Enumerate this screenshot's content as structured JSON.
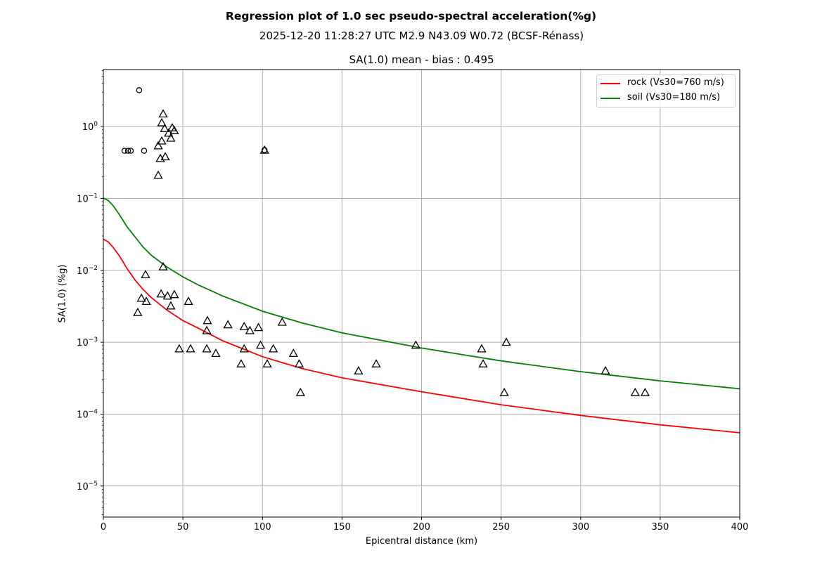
{
  "chart_data": {
    "type": "scatter",
    "title": "Regression plot of 1.0 sec pseudo-spectral acceleration(%g)",
    "subtitle": "2025-12-20 11:28:27 UTC M2.9 N43.09 W0.72 (BCSF-Rénass)",
    "axes_title": "SA(1.0) mean - bias : 0.495",
    "xlabel": "Epicentral distance (km)",
    "ylabel": "SA(1.0) (%g)",
    "xlim": [
      0,
      400
    ],
    "ylim": [
      3.7e-06,
      6.2
    ],
    "yscale": "log",
    "grid": true,
    "legend_position": "upper right",
    "x_ticks": [
      {
        "value": 0,
        "label": "0"
      },
      {
        "value": 50,
        "label": "50"
      },
      {
        "value": 100,
        "label": "100"
      },
      {
        "value": 150,
        "label": "150"
      },
      {
        "value": 200,
        "label": "200"
      },
      {
        "value": 250,
        "label": "250"
      },
      {
        "value": 300,
        "label": "300"
      },
      {
        "value": 350,
        "label": "350"
      },
      {
        "value": 400,
        "label": "400"
      }
    ],
    "y_ticks": [
      {
        "exp": 0,
        "base": "10",
        "sup": "0"
      },
      {
        "exp": -1,
        "base": "10",
        "sup": "−1"
      },
      {
        "exp": -2,
        "base": "10",
        "sup": "−2"
      },
      {
        "exp": -3,
        "base": "10",
        "sup": "−3"
      },
      {
        "exp": -4,
        "base": "10",
        "sup": "−4"
      },
      {
        "exp": -5,
        "base": "10",
        "sup": "−5"
      }
    ],
    "series": [
      {
        "name": "rock (Vs30=760 m/s)",
        "kind": "line",
        "color": "#ff0000",
        "x": [
          0,
          3,
          6,
          10,
          15,
          20,
          25,
          30,
          40,
          50,
          60,
          75,
          100,
          125,
          150,
          200,
          250,
          300,
          350,
          400
        ],
        "y": [
          0.027,
          0.025,
          0.021,
          0.016,
          0.0105,
          0.0073,
          0.0054,
          0.0042,
          0.0028,
          0.002,
          0.00155,
          0.00105,
          0.00063,
          0.00043,
          0.00032,
          0.000205,
          0.000135,
          9.6e-05,
          7.1e-05,
          5.5e-05
        ]
      },
      {
        "name": "soil (Vs30=180 m/s)",
        "kind": "line",
        "color": "#008000",
        "x": [
          0,
          3,
          6,
          10,
          15,
          20,
          25,
          30,
          40,
          50,
          60,
          75,
          100,
          125,
          150,
          200,
          250,
          300,
          350,
          400
        ],
        "y": [
          0.101,
          0.094,
          0.08,
          0.06,
          0.04,
          0.029,
          0.021,
          0.0163,
          0.0111,
          0.0081,
          0.0062,
          0.0044,
          0.0027,
          0.00185,
          0.00135,
          0.00083,
          0.00055,
          0.00039,
          0.00029,
          0.000225
        ]
      },
      {
        "name": "stations-circle",
        "kind": "scatter",
        "marker": "circle",
        "x": [
          22.5,
          13.3,
          15.5,
          17.2,
          25.6,
          101.3
        ],
        "y": [
          3.2,
          0.46,
          0.46,
          0.46,
          0.46,
          0.47
        ]
      },
      {
        "name": "stations-triangle",
        "kind": "scatter",
        "marker": "triangle",
        "x": [
          37.6,
          36.7,
          38.5,
          43.3,
          44.6,
          41.0,
          42.4,
          36.7,
          34.5,
          35.8,
          38.9,
          34.5,
          101.3,
          37.6,
          26.5,
          36.3,
          40.3,
          44.6,
          23.9,
          27.0,
          42.4,
          53.5,
          21.6,
          65.4,
          78.3,
          88.5,
          92.1,
          97.5,
          65.0,
          112.4,
          47.7,
          54.8,
          65.0,
          70.7,
          88.5,
          98.8,
          106.8,
          86.6,
          103.0,
          119.5,
          123.1,
          123.9,
          160.4,
          171.5,
          196.4,
          237.8,
          238.7,
          253.3,
          252.0,
          315.6,
          334.3,
          340.5
        ],
        "y": [
          1.5,
          1.13,
          0.94,
          0.96,
          0.88,
          0.81,
          0.69,
          0.63,
          0.54,
          0.36,
          0.38,
          0.21,
          0.47,
          0.0112,
          0.0087,
          0.0047,
          0.0044,
          0.0046,
          0.0041,
          0.0037,
          0.0032,
          0.0037,
          0.0026,
          0.002,
          0.00175,
          0.00165,
          0.00145,
          0.0016,
          0.00145,
          0.0019,
          0.00081,
          0.00081,
          0.00081,
          0.0007,
          0.00081,
          0.00091,
          0.00081,
          0.0005,
          0.0005,
          0.0007,
          0.0005,
          0.0002,
          0.0004,
          0.0005,
          0.00091,
          0.00081,
          0.0005,
          0.001,
          0.0002,
          0.0004,
          0.0002,
          0.0002
        ]
      }
    ]
  }
}
